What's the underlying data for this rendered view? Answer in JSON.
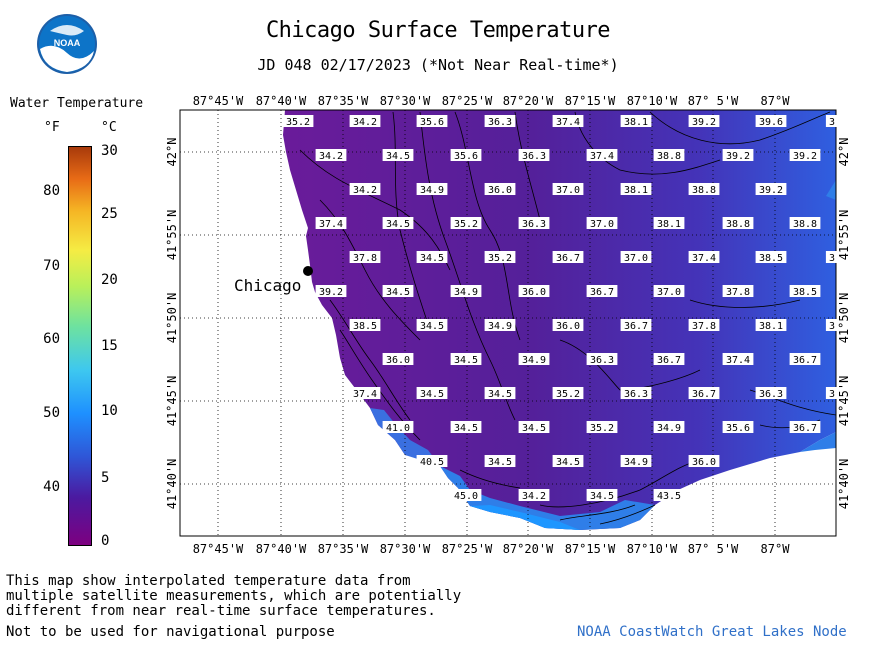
{
  "title": "Chicago Surface Temperature",
  "subtitle": "JD 048 02/17/2023 (*Not Near Real-time*)",
  "logo_text": "NOAA",
  "legend": {
    "title": "Water Temperature",
    "unit_f": "°F",
    "unit_c": "°C",
    "ticks_f": [
      "80",
      "70",
      "60",
      "50",
      "40"
    ],
    "ticks_c": [
      "30",
      "25",
      "20",
      "15",
      "10",
      "5",
      "0"
    ]
  },
  "map": {
    "lon_labels": [
      "87°45'W",
      "87°40'W",
      "87°35'W",
      "87°30'W",
      "87°25'W",
      "87°20'W",
      "87°15'W",
      "87°10'W",
      "87° 5'W",
      "87°W"
    ],
    "lat_labels": [
      "42°N",
      "41°55'N",
      "41°50'N",
      "41°45'N",
      "41°40'N"
    ],
    "city_label": "Chicago",
    "temperature_labels": [
      [
        "35.2",
        "34.2",
        "35.6",
        "36.3",
        "37.4",
        "38.1",
        "39.2",
        "39.6",
        "3"
      ],
      [
        "34.2",
        "34.5",
        "35.6",
        "36.3",
        "37.4",
        "38.8",
        "39.2",
        "39.2"
      ],
      [
        "34.2",
        "34.9",
        "36.0",
        "37.0",
        "38.1",
        "38.8",
        "39.2"
      ],
      [
        "37.4",
        "34.5",
        "35.2",
        "36.3",
        "37.0",
        "38.1",
        "38.8",
        "38.8"
      ],
      [
        "37.8",
        "34.5",
        "35.2",
        "36.7",
        "37.0",
        "37.4",
        "38.5",
        "3"
      ],
      [
        "39.2",
        "34.5",
        "34.9",
        "36.0",
        "36.7",
        "37.0",
        "37.8",
        "38.5"
      ],
      [
        "38.5",
        "34.5",
        "34.9",
        "36.0",
        "36.7",
        "37.8",
        "38.1",
        "3"
      ],
      [
        "36.0",
        "34.5",
        "34.9",
        "36.3",
        "36.7",
        "37.4",
        "36.7"
      ],
      [
        "37.4",
        "34.5",
        "34.5",
        "35.2",
        "36.3",
        "36.7",
        "36.3",
        "3"
      ],
      [
        "41.0",
        "34.5",
        "34.5",
        "35.2",
        "34.9",
        "35.6",
        "36.7"
      ],
      [
        "40.5",
        "34.5",
        "34.5",
        "34.9",
        "36.0"
      ],
      [
        "45.0",
        "34.2",
        "34.5",
        "43.5"
      ]
    ]
  },
  "footer": {
    "description": "This map show interpolated temperature data from\nmultiple satellite measurements, which are potentially\ndifferent from near real-time surface temperatures.",
    "warning": "Not to be used for navigational purpose",
    "credit": "NOAA CoastWatch Great Lakes Node"
  },
  "colors": {
    "water_main": "#5a1d98",
    "water_east": "#3b55d8",
    "water_shore_warm": "#1e90ff",
    "land": "#ffffff",
    "credit": "#3070c8"
  }
}
